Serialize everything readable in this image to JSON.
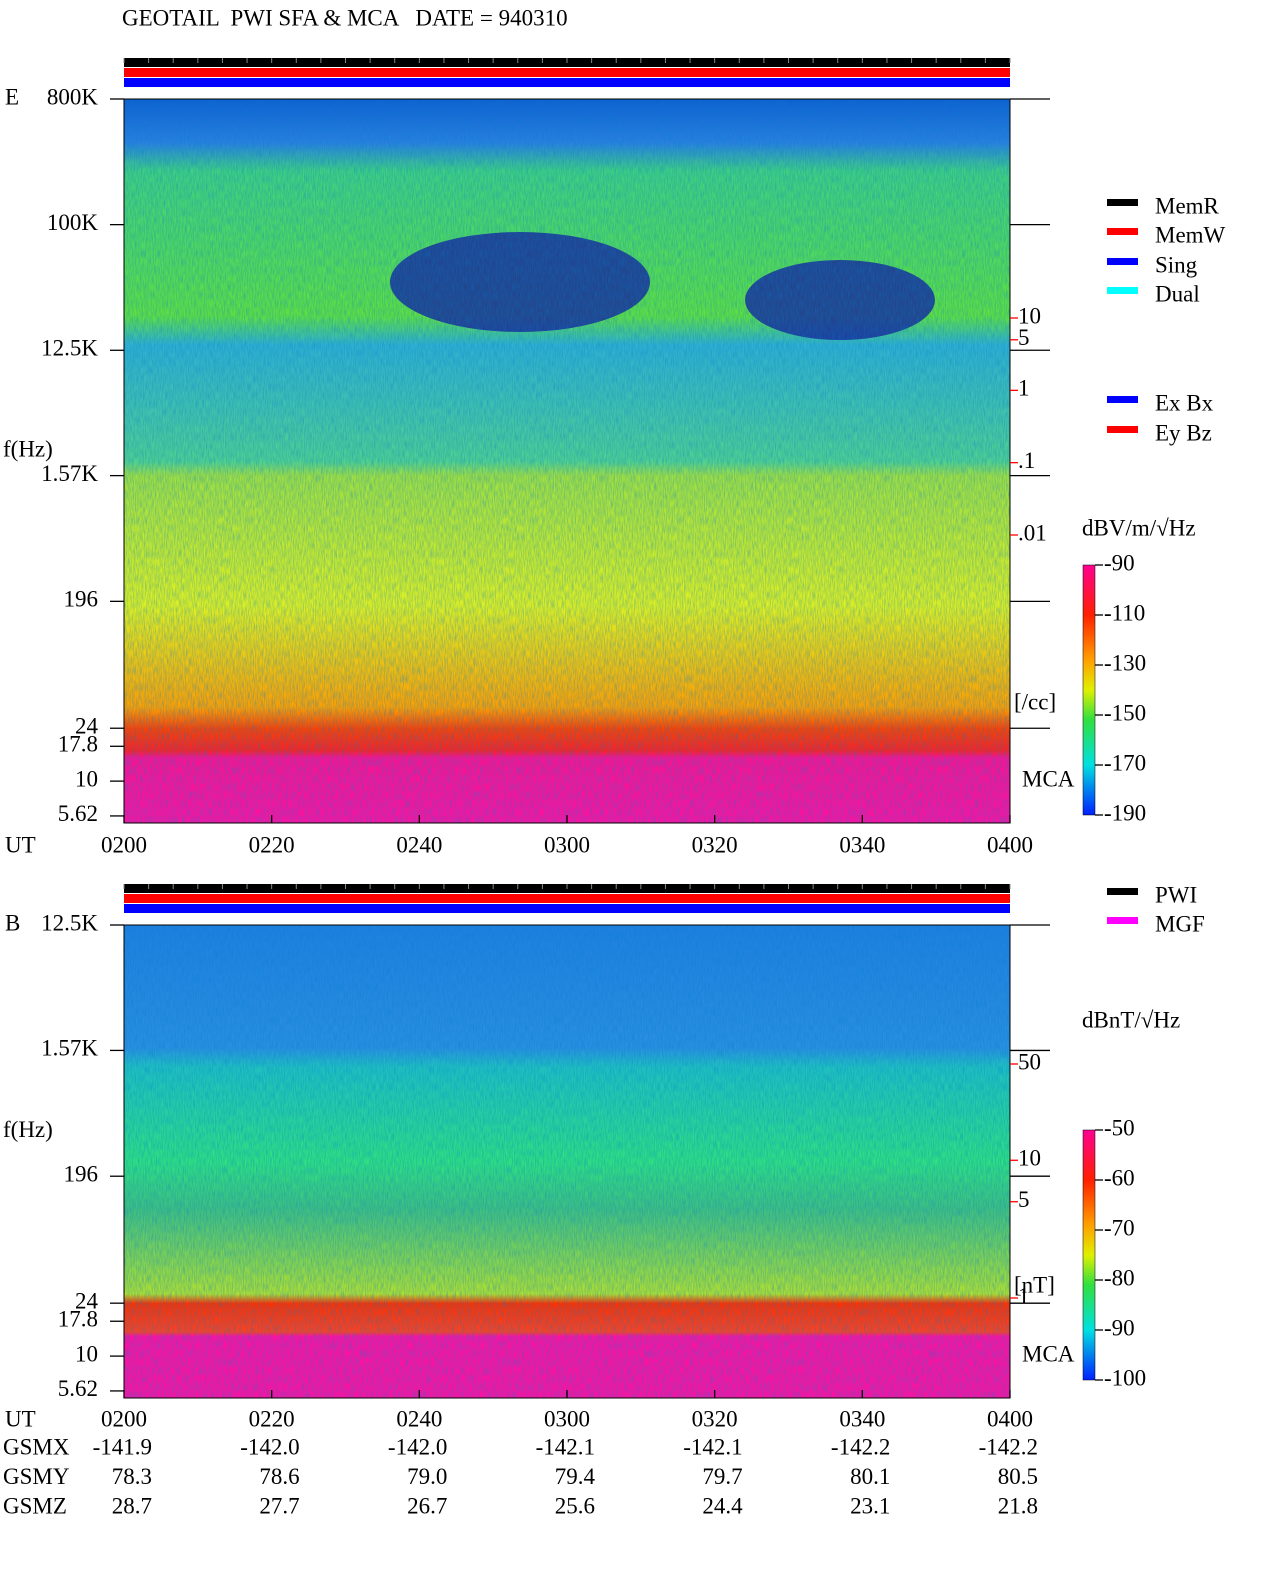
{
  "title": "GEOTAIL  PWI SFA & MCA   DATE = 940310",
  "chart_data": [
    {
      "type": "spectrogram",
      "panel_label": "E",
      "y_label": "f(Hz)",
      "x_label": "UT",
      "log_y": true,
      "ylim": [
        5,
        800000
      ],
      "yticks": [
        {
          "value": 800000,
          "label": "800K"
        },
        {
          "value": 100000,
          "label": "100K"
        },
        {
          "value": 12500,
          "label": "12.5K"
        },
        {
          "value": 1570,
          "label": "1.57K"
        },
        196,
        24,
        17.8,
        10,
        5.62
      ],
      "x": [
        "0200",
        "0220",
        "0240",
        "0300",
        "0320",
        "0340",
        "0400"
      ],
      "mca_label": "MCA",
      "colorbar": {
        "label": "dBV/m/√Hz",
        "clim": [
          -90,
          -190
        ],
        "ticks": [
          -90,
          -110,
          -130,
          -150,
          -170,
          -190
        ]
      },
      "density_axis": {
        "label": "[/cc]",
        "color": "#ff0000",
        "ticks": [
          10,
          5,
          1,
          {
            "value": 0.1,
            "label": ".1"
          },
          {
            "value": 0.01,
            "label": ".01"
          }
        ]
      },
      "legends": [
        [
          {
            "name": "MemR",
            "color": "#000000"
          },
          {
            "name": "MemW",
            "color": "#ff0000"
          },
          {
            "name": "Sing",
            "color": "#0000ff"
          },
          {
            "name": "Dual",
            "color": "#00ffff"
          }
        ],
        [
          {
            "name": "Ex Bx",
            "color": "#0000ff"
          },
          {
            "name": "Ey Bz",
            "color": "#ff0000"
          }
        ]
      ]
    },
    {
      "type": "spectrogram",
      "panel_label": "B",
      "y_label": "f(Hz)",
      "x_label": "UT",
      "log_y": true,
      "ylim": [
        5,
        12500
      ],
      "yticks": [
        {
          "value": 12500,
          "label": "12.5K"
        },
        {
          "value": 1570,
          "label": "1.57K"
        },
        196,
        24,
        17.8,
        10,
        5.62
      ],
      "x": [
        "0200",
        "0220",
        "0240",
        "0300",
        "0320",
        "0340",
        "0400"
      ],
      "mca_label": "MCA",
      "colorbar": {
        "label": "dBnT/√Hz",
        "clim": [
          -50,
          -100
        ],
        "ticks": [
          -50,
          -60,
          -70,
          -80,
          -90,
          -100
        ]
      },
      "density_axis": {
        "label": "[nT]",
        "color": "#ff0000",
        "ticks": [
          50,
          10,
          5,
          1
        ]
      },
      "legends": [
        [
          {
            "name": "PWI",
            "color": "#000000"
          },
          {
            "name": "MGF",
            "color": "#ff00ff"
          }
        ]
      ]
    }
  ],
  "orbit": {
    "rows": [
      {
        "name": "GSMX",
        "values": [
          "-141.9",
          "-142.0",
          "-142.0",
          "-142.1",
          "-142.1",
          "-142.2",
          "-142.2"
        ]
      },
      {
        "name": "GSMY",
        "values": [
          "78.3",
          "78.6",
          "79.0",
          "79.4",
          "79.7",
          "80.1",
          "80.5"
        ]
      },
      {
        "name": "GSMZ",
        "values": [
          "28.7",
          "27.7",
          "26.7",
          "25.6",
          "24.4",
          "23.1",
          "21.8"
        ]
      }
    ]
  }
}
